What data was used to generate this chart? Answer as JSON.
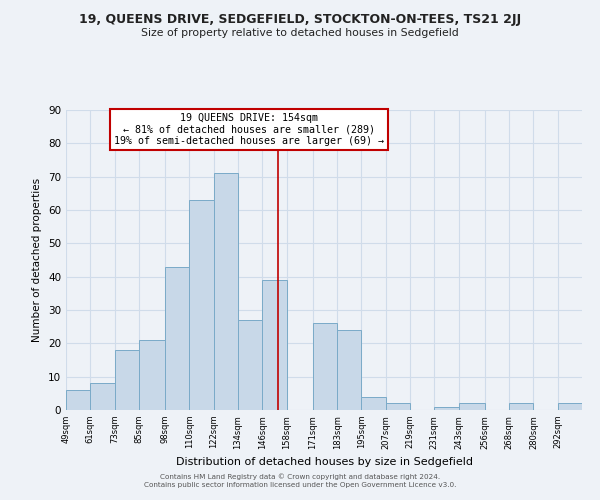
{
  "title": "19, QUEENS DRIVE, SEDGEFIELD, STOCKTON-ON-TEES, TS21 2JJ",
  "subtitle": "Size of property relative to detached houses in Sedgefield",
  "xlabel": "Distribution of detached houses by size in Sedgefield",
  "ylabel": "Number of detached properties",
  "bin_labels": [
    "49sqm",
    "61sqm",
    "73sqm",
    "85sqm",
    "98sqm",
    "110sqm",
    "122sqm",
    "134sqm",
    "146sqm",
    "158sqm",
    "171sqm",
    "183sqm",
    "195sqm",
    "207sqm",
    "219sqm",
    "231sqm",
    "243sqm",
    "256sqm",
    "268sqm",
    "280sqm",
    "292sqm"
  ],
  "bin_edges": [
    49,
    61,
    73,
    85,
    98,
    110,
    122,
    134,
    146,
    158,
    171,
    183,
    195,
    207,
    219,
    231,
    243,
    256,
    268,
    280,
    292
  ],
  "bar_heights": [
    6,
    8,
    18,
    21,
    43,
    63,
    71,
    27,
    39,
    0,
    26,
    24,
    4,
    2,
    0,
    1,
    2,
    0,
    2,
    0,
    2
  ],
  "bar_color": "#c8d8e8",
  "bar_edge_color": "#7aaac8",
  "property_line_x": 154,
  "property_line_color": "#c00000",
  "annotation_title": "19 QUEENS DRIVE: 154sqm",
  "annotation_line1": "← 81% of detached houses are smaller (289)",
  "annotation_line2": "19% of semi-detached houses are larger (69) →",
  "annotation_box_color": "#ffffff",
  "annotation_box_edge_color": "#c00000",
  "ylim": [
    0,
    90
  ],
  "yticks": [
    0,
    10,
    20,
    30,
    40,
    50,
    60,
    70,
    80,
    90
  ],
  "footer_line1": "Contains HM Land Registry data © Crown copyright and database right 2024.",
  "footer_line2": "Contains public sector information licensed under the Open Government Licence v3.0.",
  "bg_color": "#eef2f7",
  "grid_color": "#d0dcea"
}
